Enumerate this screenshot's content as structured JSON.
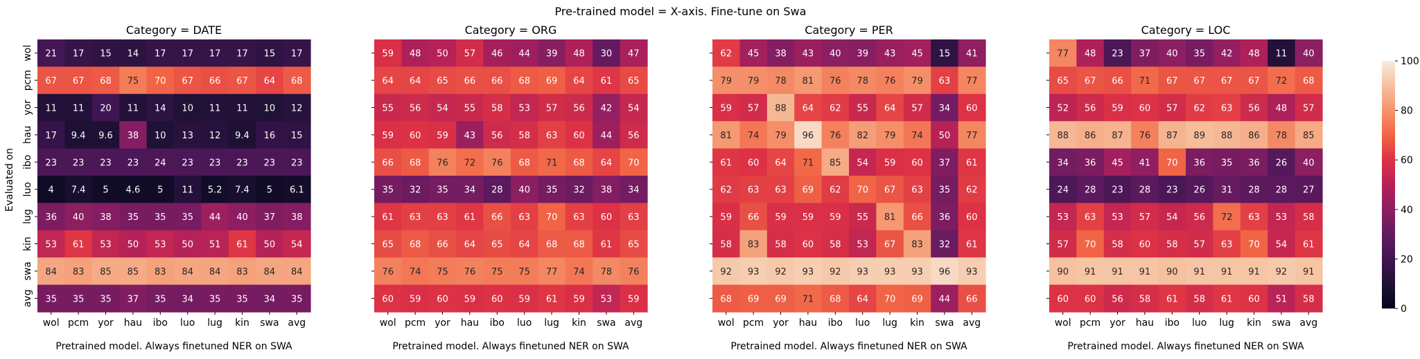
{
  "chart_data": {
    "type": "heatmap",
    "suptitle": "Pre-trained model = X-axis. Fine-tune on Swa",
    "ylabel": "Evaluated on",
    "xlabel": "Pretrained model. Always finetuned NER on SWA",
    "x_categories": [
      "wol",
      "pcm",
      "yor",
      "hau",
      "ibo",
      "luo",
      "lug",
      "kin",
      "swa",
      "avg"
    ],
    "y_categories": [
      "wol",
      "pcm",
      "yor",
      "hau",
      "ibo",
      "luo",
      "lug",
      "kin",
      "swa",
      "avg"
    ],
    "colorbar": {
      "min": 0,
      "max": 100,
      "ticks": [
        0,
        20,
        40,
        60,
        80,
        100
      ],
      "colormap": "rocket"
    },
    "panels": [
      {
        "title": "Category = DATE",
        "values": [
          [
            21,
            17,
            15,
            14,
            17,
            17,
            17,
            17,
            15,
            17
          ],
          [
            67,
            67,
            68,
            75,
            70,
            67,
            66,
            67,
            64,
            68
          ],
          [
            11,
            11,
            20,
            11,
            14,
            10,
            11,
            11,
            10,
            12
          ],
          [
            17,
            9.4,
            9.6,
            38,
            10,
            13,
            12,
            9.4,
            16,
            15
          ],
          [
            23,
            23,
            23,
            23,
            24,
            23,
            23,
            23,
            23,
            23
          ],
          [
            4,
            7.4,
            5,
            4.6,
            5,
            11,
            5.2,
            7.4,
            5,
            6.1
          ],
          [
            36,
            40,
            38,
            35,
            35,
            35,
            44,
            40,
            37,
            38
          ],
          [
            53,
            61,
            53,
            50,
            53,
            50,
            51,
            61,
            50,
            54
          ],
          [
            84,
            83,
            85,
            85,
            83,
            84,
            84,
            83,
            84,
            84
          ],
          [
            35,
            35,
            35,
            37,
            35,
            34,
            35,
            35,
            34,
            35
          ]
        ]
      },
      {
        "title": "Category = ORG",
        "values": [
          [
            59,
            48,
            50,
            57,
            46,
            44,
            39,
            48,
            30,
            47
          ],
          [
            64,
            64,
            65,
            66,
            66,
            68,
            69,
            64,
            61,
            65
          ],
          [
            55,
            56,
            54,
            55,
            58,
            53,
            57,
            56,
            42,
            54
          ],
          [
            59,
            60,
            59,
            43,
            56,
            58,
            63,
            60,
            44,
            56
          ],
          [
            66,
            68,
            76,
            72,
            76,
            68,
            71,
            68,
            64,
            70
          ],
          [
            35,
            32,
            35,
            34,
            28,
            40,
            35,
            32,
            38,
            34
          ],
          [
            61,
            63,
            63,
            61,
            66,
            63,
            70,
            63,
            60,
            63
          ],
          [
            65,
            68,
            66,
            64,
            65,
            64,
            68,
            68,
            61,
            65
          ],
          [
            76,
            74,
            75,
            76,
            75,
            75,
            77,
            74,
            78,
            76
          ],
          [
            60,
            59,
            60,
            59,
            60,
            59,
            61,
            59,
            53,
            59
          ]
        ]
      },
      {
        "title": "Category = PER",
        "values": [
          [
            62,
            45,
            38,
            43,
            40,
            39,
            43,
            45,
            15,
            41
          ],
          [
            79,
            79,
            78,
            81,
            76,
            78,
            76,
            79,
            63,
            77
          ],
          [
            59,
            57,
            88,
            64,
            62,
            55,
            64,
            57,
            34,
            60
          ],
          [
            81,
            74,
            79,
            96,
            76,
            82,
            79,
            74,
            50,
            77
          ],
          [
            61,
            60,
            64,
            71,
            85,
            54,
            59,
            60,
            37,
            61
          ],
          [
            62,
            63,
            63,
            69,
            62,
            70,
            67,
            63,
            35,
            62
          ],
          [
            59,
            66,
            59,
            59,
            59,
            55,
            81,
            66,
            36,
            60
          ],
          [
            58,
            83,
            58,
            60,
            58,
            53,
            67,
            83,
            32,
            61
          ],
          [
            92,
            93,
            92,
            93,
            92,
            93,
            93,
            93,
            96,
            93
          ],
          [
            68,
            69,
            69,
            71,
            68,
            64,
            70,
            69,
            44,
            66
          ]
        ]
      },
      {
        "title": "Category = LOC",
        "values": [
          [
            77,
            48,
            23,
            37,
            40,
            35,
            42,
            48,
            11,
            40
          ],
          [
            65,
            67,
            66,
            71,
            67,
            67,
            67,
            67,
            72,
            68
          ],
          [
            52,
            56,
            59,
            60,
            57,
            62,
            63,
            56,
            48,
            57
          ],
          [
            88,
            86,
            87,
            76,
            87,
            89,
            88,
            86,
            78,
            85
          ],
          [
            34,
            36,
            45,
            41,
            70,
            36,
            35,
            36,
            26,
            40
          ],
          [
            24,
            28,
            23,
            28,
            23,
            26,
            31,
            28,
            28,
            27
          ],
          [
            53,
            63,
            53,
            57,
            54,
            56,
            72,
            63,
            53,
            58
          ],
          [
            57,
            70,
            58,
            60,
            58,
            57,
            63,
            70,
            54,
            61
          ],
          [
            90,
            91,
            91,
            91,
            90,
            91,
            91,
            91,
            92,
            91
          ],
          [
            60,
            60,
            56,
            58,
            61,
            58,
            61,
            60,
            51,
            58
          ]
        ]
      }
    ]
  }
}
